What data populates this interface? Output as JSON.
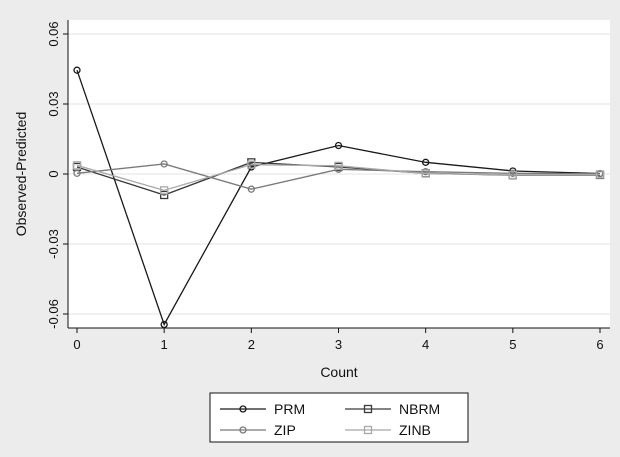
{
  "chart_data": {
    "type": "line",
    "title": "",
    "xlabel": "Count",
    "ylabel": "Observed-Predicted",
    "x": [
      0,
      1,
      2,
      3,
      4,
      5,
      6
    ],
    "xlim": [
      0,
      6
    ],
    "ylim": [
      -0.06,
      0.06
    ],
    "x_ticks": [
      "0",
      "1",
      "2",
      "3",
      "4",
      "5",
      "6"
    ],
    "y_ticks": [
      "-0.06",
      "-0.03",
      "0",
      "0.03",
      "0.06"
    ],
    "y_tick_values": [
      -0.06,
      -0.03,
      0,
      0.03,
      0.06
    ],
    "grid": "horizontal",
    "legend_position": "bottom",
    "series": [
      {
        "name": "PRM",
        "values": [
          0.0445,
          -0.0645,
          0.003,
          0.0122,
          0.005,
          0.0013,
          0.0002
        ],
        "marker": "circle",
        "color": "#1a1a1a"
      },
      {
        "name": "NBRM",
        "values": [
          0.003,
          -0.009,
          0.005,
          0.003,
          0.0003,
          -0.0005,
          -0.0004
        ],
        "marker": "square",
        "color": "#3a3a3a"
      },
      {
        "name": "ZIP",
        "values": [
          0.0003,
          0.0043,
          -0.0065,
          0.002,
          0.001,
          0.0003,
          0.0001
        ],
        "marker": "circle",
        "color": "#7a7a7a"
      },
      {
        "name": "ZINB",
        "values": [
          0.0037,
          -0.007,
          0.004,
          0.0035,
          0.0002,
          -0.0004,
          -0.0002
        ],
        "marker": "square",
        "color": "#a8a8a8"
      }
    ]
  }
}
